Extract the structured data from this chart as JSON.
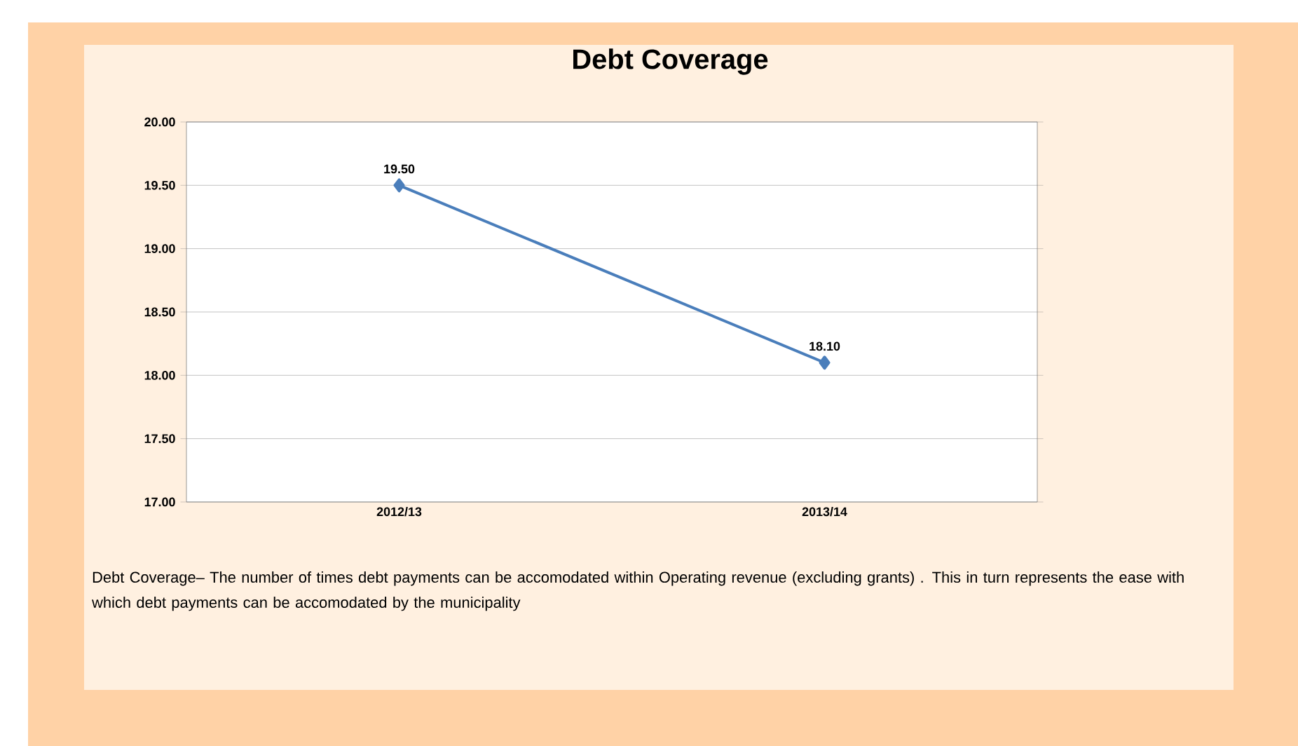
{
  "chart_data": {
    "type": "line",
    "title": "Debt Coverage",
    "categories": [
      "2012/13",
      "2013/14"
    ],
    "series": [
      {
        "color": "#4a7ebb",
        "values": [
          19.5,
          18.1
        ],
        "value_labels": [
          "19.50",
          "18.10"
        ]
      }
    ],
    "ylim": [
      17,
      20
    ],
    "yticks": [
      {
        "value": 17,
        "label": "17.00"
      },
      {
        "value": 17.5,
        "label": "17.50"
      },
      {
        "value": 18,
        "label": "18.00"
      },
      {
        "value": 18.5,
        "label": "18.50"
      },
      {
        "value": 19,
        "label": "19.00"
      },
      {
        "value": 19.5,
        "label": "19.50"
      },
      {
        "value": 20,
        "label": "20.00"
      }
    ],
    "grid": "y",
    "marker": "diamond",
    "line_style": "solid",
    "annotations": [
      "Debt Coverage– The number of times debt payments can be accomodated within Operating revenue (excluding grants) .  This in turn represents the ease with which debt payments can be accomodated by the municipality"
    ]
  }
}
